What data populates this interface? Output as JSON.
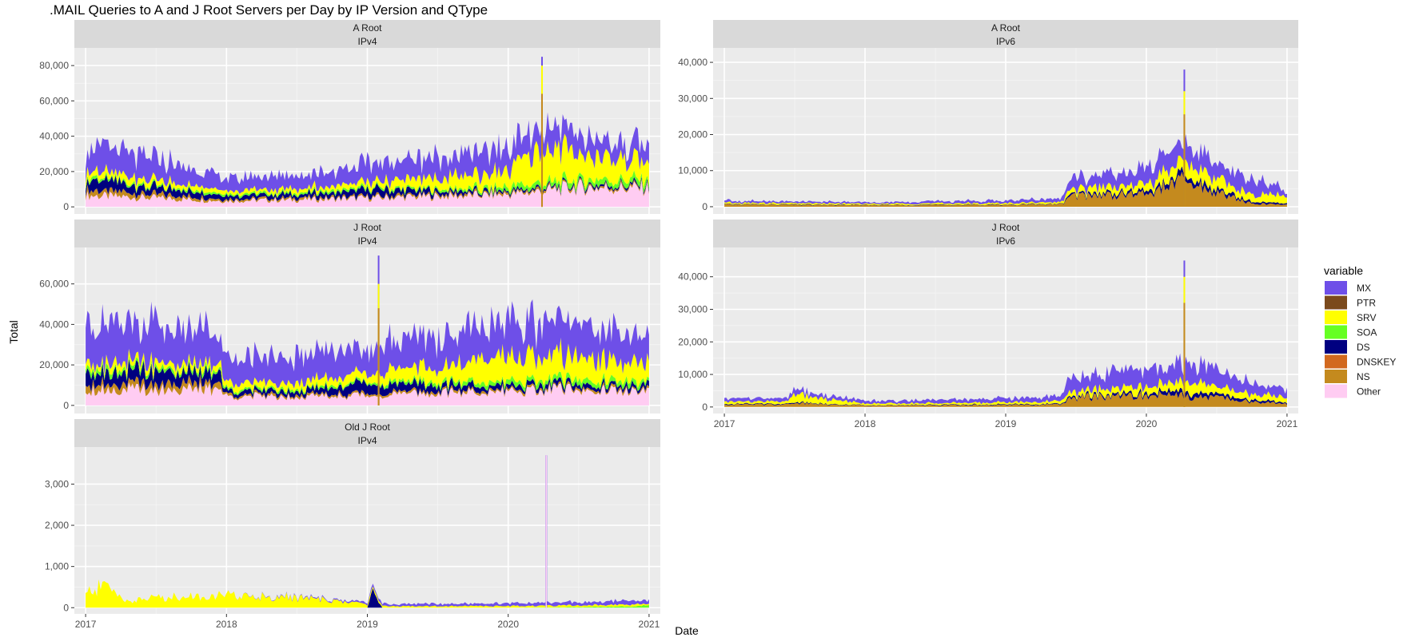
{
  "chart_data": {
    "type": "area",
    "title": ".MAIL Queries to A and J Root Servers per Day by IP Version and QType",
    "xlabel": "Date",
    "ylabel": "Total",
    "x_ticks": [
      "2017",
      "2018",
      "2019",
      "2020",
      "2021"
    ],
    "x_range": [
      2016.92,
      2021.08
    ],
    "legend": {
      "title": "variable",
      "position": "right",
      "entries": [
        {
          "name": "MX",
          "color": "#6E4FE8"
        },
        {
          "name": "PTR",
          "color": "#7B4A1C"
        },
        {
          "name": "SRV",
          "color": "#FFFF00"
        },
        {
          "name": "SOA",
          "color": "#66FF22"
        },
        {
          "name": "DS",
          "color": "#000080"
        },
        {
          "name": "DNSKEY",
          "color": "#D2691E"
        },
        {
          "name": "NS",
          "color": "#C48A1E"
        },
        {
          "name": "Other",
          "color": "#FFCCF2"
        }
      ]
    },
    "panels": [
      {
        "id": "a-root-ipv4",
        "strip_top": "A Root",
        "strip_bottom": "IPv4",
        "ylim": [
          -4000,
          90000
        ],
        "yticks": [
          0,
          20000,
          40000,
          60000,
          80000
        ],
        "ytick_labels": [
          "0",
          "20,000",
          "40,000",
          "60,000",
          "80,000"
        ],
        "series": [
          {
            "name": "Other",
            "x": [
              2017.0,
              2017.5,
              2018.0,
              2018.5,
              2019.0,
              2019.5,
              2020.0,
              2020.25,
              2020.5,
              2021.0
            ],
            "values": [
              6500,
              5000,
              3500,
              4000,
              5000,
              6000,
              7000,
              9000,
              11000,
              10500
            ]
          },
          {
            "name": "NS",
            "x": [
              2017.0,
              2017.5,
              2018.0,
              2018.5,
              2019.0,
              2019.5,
              2020.0,
              2020.25,
              2020.5,
              2021.0
            ],
            "values": [
              3000,
              2000,
              1000,
              1000,
              1000,
              1000,
              1000,
              1000,
              1000,
              1000
            ]
          },
          {
            "name": "DS",
            "x": [
              2017.0,
              2017.5,
              2018.0,
              2018.5,
              2019.0,
              2019.5,
              2020.0,
              2020.25,
              2020.5,
              2021.0
            ],
            "values": [
              6000,
              4000,
              2000,
              2000,
              4000,
              2000,
              1000,
              1000,
              1000,
              1000
            ]
          },
          {
            "name": "SOA",
            "x": [
              2017.0,
              2017.5,
              2018.0,
              2018.5,
              2019.0,
              2019.5,
              2020.0,
              2020.25,
              2020.5,
              2021.0
            ],
            "values": [
              1500,
              1000,
              1000,
              1000,
              1000,
              1000,
              2000,
              3000,
              3000,
              3000
            ]
          },
          {
            "name": "SRV",
            "x": [
              2017.0,
              2017.5,
              2018.0,
              2018.5,
              2019.0,
              2019.5,
              2020.0,
              2020.25,
              2020.5,
              2021.0
            ],
            "values": [
              4000,
              3000,
              2000,
              2000,
              3000,
              6000,
              9000,
              20000,
              15000,
              10000
            ]
          },
          {
            "name": "MX",
            "x": [
              2017.0,
              2017.5,
              2018.0,
              2018.5,
              2019.0,
              2019.5,
              2020.0,
              2020.25,
              2020.5,
              2021.0
            ],
            "values": [
              14000,
              12000,
              7000,
              8000,
              10000,
              12000,
              13000,
              12000,
              10000,
              9000
            ]
          }
        ]
      },
      {
        "id": "a-root-ipv6",
        "strip_top": "A Root",
        "strip_bottom": "IPv6",
        "ylim": [
          -2000,
          44000
        ],
        "yticks": [
          0,
          10000,
          20000,
          30000,
          40000
        ],
        "ytick_labels": [
          "0",
          "10,000",
          "20,000",
          "30,000",
          "40,000"
        ],
        "series": [
          {
            "name": "NS",
            "x": [
              2017.0,
              2018.0,
              2019.0,
              2019.4,
              2019.45,
              2019.5,
              2020.0,
              2020.25,
              2020.5,
              2020.75,
              2021.0
            ],
            "values": [
              600,
              400,
              500,
              700,
              2500,
              3000,
              3500,
              7000,
              4000,
              800,
              600
            ]
          },
          {
            "name": "DS",
            "x": [
              2017.0,
              2018.0,
              2019.0,
              2019.4,
              2019.45,
              2019.5,
              2020.0,
              2020.25,
              2020.5,
              2020.75,
              2021.0
            ],
            "values": [
              100,
              100,
              100,
              100,
              500,
              500,
              700,
              1500,
              1000,
              500,
              300
            ]
          },
          {
            "name": "SRV",
            "x": [
              2017.0,
              2018.0,
              2019.0,
              2019.4,
              2019.45,
              2019.5,
              2020.0,
              2020.25,
              2020.5,
              2020.75,
              2021.0
            ],
            "values": [
              400,
              300,
              400,
              500,
              1500,
              1500,
              2000,
              3500,
              3000,
              2000,
              2500
            ]
          },
          {
            "name": "MX",
            "x": [
              2017.0,
              2018.0,
              2019.0,
              2019.4,
              2019.45,
              2019.5,
              2020.0,
              2020.25,
              2020.5,
              2020.75,
              2021.0
            ],
            "values": [
              600,
              400,
              700,
              900,
              3000,
              3000,
              4000,
              5000,
              5000,
              4000,
              1500
            ]
          }
        ]
      },
      {
        "id": "j-root-ipv4",
        "strip_top": "J Root",
        "strip_bottom": "IPv4",
        "ylim": [
          -4000,
          78000
        ],
        "yticks": [
          0,
          20000,
          40000,
          60000
        ],
        "ytick_labels": [
          "0",
          "20,000",
          "40,000",
          "60,000"
        ],
        "series": [
          {
            "name": "Other",
            "x": [
              2017.0,
              2017.5,
              2017.95,
              2018.0,
              2018.5,
              2019.0,
              2019.5,
              2020.0,
              2020.5,
              2021.0
            ],
            "values": [
              8000,
              8000,
              8000,
              4500,
              4500,
              5000,
              6000,
              7000,
              8000,
              6500
            ]
          },
          {
            "name": "NS",
            "x": [
              2017.0,
              2017.5,
              2017.95,
              2018.0,
              2018.5,
              2019.0,
              2019.5,
              2020.0,
              2020.5,
              2021.0
            ],
            "values": [
              3000,
              3000,
              3000,
              1000,
              1000,
              1000,
              1000,
              1000,
              1000,
              1000
            ]
          },
          {
            "name": "DS",
            "x": [
              2017.0,
              2017.5,
              2017.95,
              2018.0,
              2018.5,
              2019.0,
              2019.5,
              2020.0,
              2020.5,
              2021.0
            ],
            "values": [
              7000,
              6000,
              5000,
              2000,
              2000,
              5000,
              3000,
              2000,
              2000,
              2000
            ]
          },
          {
            "name": "SOA",
            "x": [
              2017.0,
              2017.5,
              2017.95,
              2018.0,
              2018.5,
              2019.0,
              2019.5,
              2020.0,
              2020.5,
              2021.0
            ],
            "values": [
              2000,
              1500,
              1500,
              1000,
              1000,
              1000,
              1500,
              2000,
              2500,
              2000
            ]
          },
          {
            "name": "SRV",
            "x": [
              2017.0,
              2017.5,
              2017.95,
              2018.0,
              2018.5,
              2019.0,
              2019.5,
              2020.0,
              2020.5,
              2021.0
            ],
            "values": [
              3000,
              3000,
              3000,
              3000,
              3000,
              4000,
              8000,
              12000,
              12000,
              8000
            ]
          },
          {
            "name": "MX",
            "x": [
              2017.0,
              2017.5,
              2017.95,
              2018.0,
              2018.5,
              2019.0,
              2019.5,
              2020.0,
              2020.5,
              2021.0
            ],
            "values": [
              22000,
              18000,
              15000,
              12000,
              13000,
              12000,
              16000,
              18000,
              16000,
              12000
            ]
          }
        ]
      },
      {
        "id": "j-root-ipv6",
        "strip_top": "J Root",
        "strip_bottom": "IPv6",
        "ylim": [
          -2000,
          49000
        ],
        "yticks": [
          0,
          10000,
          20000,
          30000,
          40000
        ],
        "ytick_labels": [
          "0",
          "10,000",
          "20,000",
          "30,000",
          "40,000"
        ],
        "series": [
          {
            "name": "NS",
            "x": [
              2017.0,
              2017.45,
              2017.5,
              2017.6,
              2018.0,
              2019.0,
              2019.4,
              2019.45,
              2019.5,
              2020.0,
              2020.25,
              2020.5,
              2020.75,
              2021.0
            ],
            "values": [
              800,
              800,
              1500,
              1000,
              500,
              600,
              800,
              2500,
              3000,
              3500,
              3500,
              3000,
              1500,
              1000
            ]
          },
          {
            "name": "DS",
            "x": [
              2017.0,
              2017.45,
              2017.5,
              2017.6,
              2018.0,
              2019.0,
              2019.4,
              2019.45,
              2019.5,
              2020.0,
              2020.25,
              2020.5,
              2020.75,
              2021.0
            ],
            "values": [
              200,
              200,
              300,
              200,
              100,
              200,
              200,
              500,
              500,
              700,
              1500,
              1000,
              600,
              400
            ]
          },
          {
            "name": "SRV",
            "x": [
              2017.0,
              2017.45,
              2017.5,
              2017.6,
              2018.0,
              2019.0,
              2019.4,
              2019.45,
              2019.5,
              2020.0,
              2020.25,
              2020.5,
              2020.75,
              2021.0
            ],
            "values": [
              700,
              700,
              3000,
              2000,
              500,
              600,
              800,
              1500,
              1500,
              2000,
              3000,
              2500,
              2000,
              1500
            ]
          },
          {
            "name": "MX",
            "x": [
              2017.0,
              2017.45,
              2017.5,
              2017.6,
              2018.0,
              2019.0,
              2019.4,
              2019.45,
              2019.5,
              2020.0,
              2020.25,
              2020.5,
              2020.75,
              2021.0
            ],
            "values": [
              1000,
              1000,
              1500,
              1200,
              800,
              1200,
              1500,
              4500,
              4500,
              5000,
              5500,
              5000,
              3000,
              2500
            ]
          }
        ]
      },
      {
        "id": "old-j-root-ipv4",
        "strip_top": "Old J Root",
        "strip_bottom": "IPv4",
        "ylim": [
          -150,
          3900
        ],
        "yticks": [
          0,
          1000,
          2000,
          3000
        ],
        "ytick_labels": [
          "0",
          "1,000",
          "2,000",
          "3,000"
        ],
        "series": [
          {
            "name": "DS",
            "x": [
              2017.0,
              2018.0,
              2018.9,
              2019.0,
              2019.05,
              2019.1,
              2019.2,
              2020.0,
              2021.0
            ],
            "values": [
              0,
              0,
              0,
              0,
              500,
              0,
              0,
              0,
              0
            ]
          },
          {
            "name": "SOA",
            "x": [
              2017.0,
              2018.0,
              2019.0,
              2020.0,
              2020.9,
              2021.0
            ],
            "values": [
              0,
              0,
              0,
              0,
              30,
              60
            ]
          },
          {
            "name": "SRV",
            "x": [
              2017.0,
              2017.15,
              2017.3,
              2017.5,
              2018.0,
              2018.5,
              2018.9,
              2019.1,
              2020.0,
              2020.5,
              2021.0
            ],
            "values": [
              350,
              550,
              150,
              250,
              300,
              250,
              120,
              40,
              40,
              40,
              50
            ]
          },
          {
            "name": "MX",
            "x": [
              2017.0,
              2018.0,
              2018.9,
              2019.0,
              2019.5,
              2020.0,
              2020.5,
              2021.0
            ],
            "values": [
              0,
              0,
              30,
              50,
              60,
              60,
              80,
              100
            ]
          }
        ]
      }
    ],
    "spikes": [
      {
        "panel": "a-root-ipv4",
        "x": 2020.24,
        "total": 85000,
        "srv": 80000
      },
      {
        "panel": "a-root-ipv6",
        "x": 2020.27,
        "total": 38000,
        "srv": 32000
      },
      {
        "panel": "j-root-ipv4",
        "x": 2019.08,
        "total": 74000,
        "srv": 60000
      },
      {
        "panel": "j-root-ipv6",
        "x": 2020.27,
        "total": 45000,
        "srv": 40000
      },
      {
        "panel": "old-j-root-ipv4",
        "x": 2020.27,
        "total": 3700,
        "srv": 0
      }
    ]
  }
}
